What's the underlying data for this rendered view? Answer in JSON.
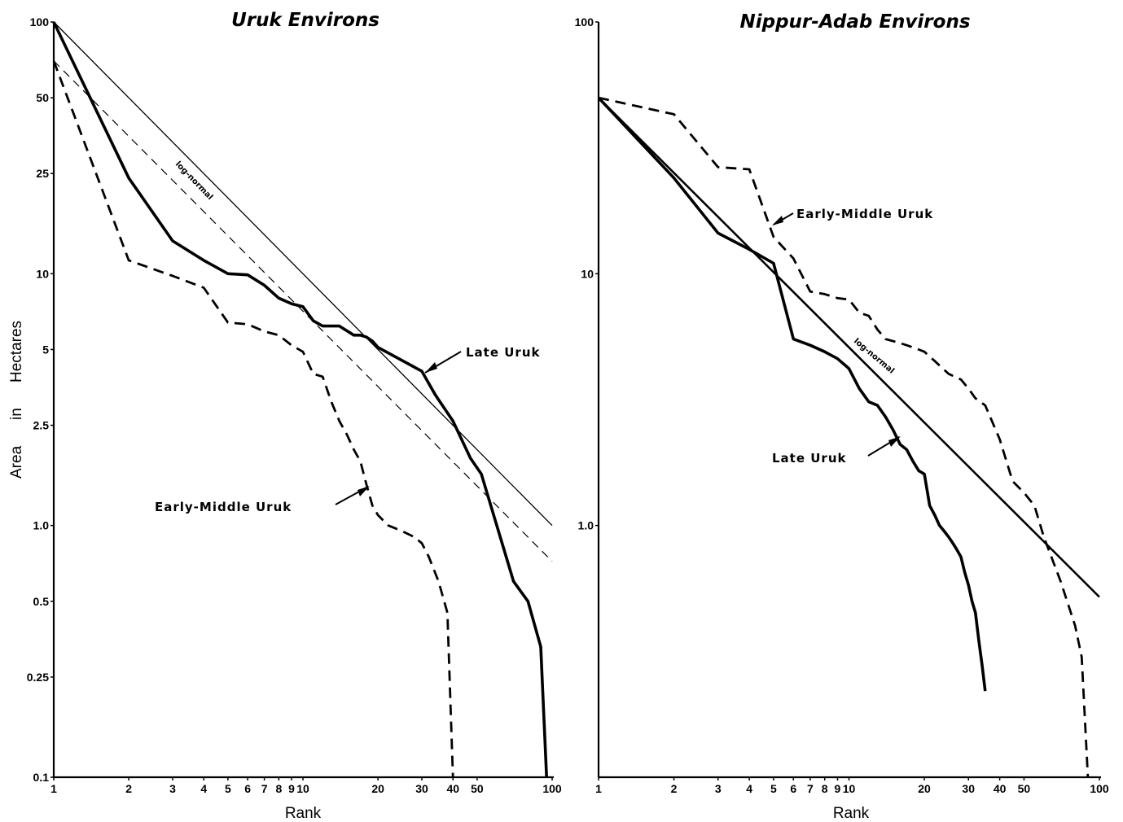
{
  "chart_data": [
    {
      "type": "line",
      "title": "Uruk Environs",
      "xlabel": "Rank",
      "ylabel": "Area in Hectares",
      "ylabel_words": [
        "Area",
        "in",
        "Hectares"
      ],
      "xscale": "log",
      "yscale": "log",
      "xlim": [
        1,
        100
      ],
      "ylim": [
        0.1,
        100
      ],
      "xticks": [
        1,
        2,
        3,
        4,
        5,
        6,
        7,
        8,
        9,
        10,
        20,
        30,
        40,
        50,
        100
      ],
      "xtick_labels": [
        "1",
        "2",
        "3",
        "4",
        "5",
        "6",
        "7",
        "8",
        "9",
        "10",
        "20",
        "30",
        "40",
        "50",
        "100"
      ],
      "yticks": [
        0.1,
        0.25,
        0.5,
        1.0,
        2.5,
        5,
        10,
        25,
        50,
        100
      ],
      "ytick_labels": [
        "0.1",
        "0.25",
        "0.5",
        "1.0",
        "2.5",
        "5",
        "10",
        "25",
        "50",
        "100"
      ],
      "grid": false,
      "series": [
        {
          "name": "Late Uruk",
          "style": "solid-thick",
          "x": [
            1,
            2,
            3,
            4,
            5,
            6,
            7,
            8,
            9,
            10,
            11,
            12,
            14,
            16,
            17,
            18,
            19,
            20,
            30,
            34,
            40,
            47,
            52,
            70,
            80,
            90,
            95
          ],
          "y": [
            100,
            24,
            13.5,
            11.3,
            10,
            9.9,
            9,
            8,
            7.6,
            7.4,
            6.5,
            6.2,
            6.2,
            5.7,
            5.7,
            5.6,
            5.4,
            5.1,
            4.1,
            3.3,
            2.6,
            1.85,
            1.6,
            0.6,
            0.5,
            0.33,
            0.1
          ]
        },
        {
          "name": "Early-Middle Uruk",
          "style": "dashed-thick",
          "x": [
            1,
            2,
            3,
            4,
            5,
            6,
            7,
            8,
            9,
            10,
            11,
            12,
            13,
            14,
            15,
            16,
            17,
            18,
            19,
            20,
            22,
            25,
            28,
            30,
            32,
            35,
            38,
            40
          ],
          "y": [
            70,
            11.3,
            9.8,
            8.8,
            6.4,
            6.3,
            5.9,
            5.7,
            5.2,
            4.9,
            4,
            3.9,
            3.1,
            2.6,
            2.3,
            2,
            1.8,
            1.45,
            1.2,
            1.1,
            1,
            0.95,
            0.9,
            0.85,
            0.75,
            0.6,
            0.45,
            0.1
          ]
        }
      ],
      "reference_lines": [
        {
          "name": "log-normal",
          "style": "dashed-thin",
          "x": [
            1,
            100
          ],
          "y": [
            70,
            0.72
          ]
        },
        {
          "name": "",
          "style": "solid-thin",
          "x": [
            1,
            100
          ],
          "y": [
            100,
            1.0
          ]
        }
      ],
      "annotations": [
        "log-normal",
        "Late Uruk",
        "Early-Middle Uruk"
      ]
    },
    {
      "type": "line",
      "title": "Nippur-Adab Environs",
      "xlabel": "Rank",
      "ylabel": "",
      "xscale": "log",
      "yscale": "log",
      "xlim": [
        1,
        100
      ],
      "ylim": [
        0.1,
        100
      ],
      "xticks": [
        1,
        2,
        3,
        4,
        5,
        6,
        7,
        8,
        9,
        10,
        20,
        30,
        40,
        50,
        100
      ],
      "xtick_labels": [
        "1",
        "2",
        "3",
        "4",
        "5",
        "6",
        "7",
        "8",
        "9",
        "10",
        "20",
        "30",
        "40",
        "50",
        "100"
      ],
      "yticks": [
        1.0,
        10,
        100
      ],
      "ytick_labels": [
        "1.0",
        "10",
        "100"
      ],
      "grid": false,
      "series": [
        {
          "name": "Late Uruk",
          "style": "solid-thick",
          "x": [
            1,
            2,
            3,
            4,
            5,
            6,
            7,
            8,
            9,
            10,
            11,
            12,
            13,
            14,
            15,
            16,
            17,
            18,
            19,
            20,
            21,
            22,
            23,
            24,
            25,
            26,
            27,
            28,
            29,
            30,
            31,
            32,
            33,
            34,
            35
          ],
          "y": [
            50,
            24,
            14.5,
            12.5,
            11,
            5.5,
            5.2,
            4.9,
            4.6,
            4.2,
            3.5,
            3.1,
            3,
            2.7,
            2.4,
            2.1,
            2,
            1.8,
            1.65,
            1.6,
            1.2,
            1.1,
            1,
            0.95,
            0.9,
            0.85,
            0.8,
            0.75,
            0.65,
            0.58,
            0.5,
            0.45,
            0.35,
            0.28,
            0.22
          ]
        },
        {
          "name": "Early-Middle Uruk",
          "style": "dashed-thick",
          "x": [
            1,
            2,
            3,
            4,
            5,
            6,
            7,
            8,
            9,
            10,
            11,
            12,
            13,
            14,
            15,
            16,
            17,
            18,
            19,
            20,
            22,
            25,
            28,
            30,
            32,
            35,
            40,
            45,
            50,
            55,
            60,
            70,
            80,
            85,
            90
          ],
          "y": [
            50,
            43,
            26.5,
            26,
            14,
            11.5,
            8.5,
            8.3,
            8,
            7.9,
            7,
            6.8,
            6,
            5.5,
            5.4,
            5.3,
            5.2,
            5.1,
            5,
            4.9,
            4.5,
            4,
            3.8,
            3.5,
            3.2,
            3,
            2.2,
            1.5,
            1.35,
            1.2,
            0.9,
            0.6,
            0.4,
            0.3,
            0.1
          ]
        }
      ],
      "reference_lines": [
        {
          "name": "log-normal",
          "style": "solid-double",
          "x": [
            1,
            100
          ],
          "y": [
            50,
            0.52
          ]
        }
      ],
      "annotations": [
        "Early-Middle Uruk",
        "log-normal",
        "Late Uruk"
      ]
    }
  ]
}
